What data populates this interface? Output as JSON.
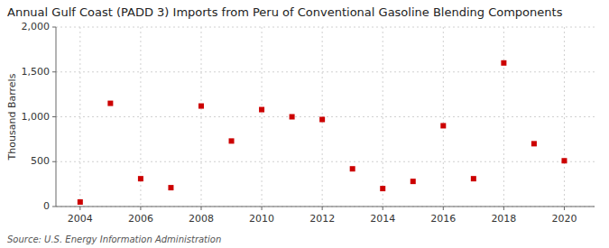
{
  "chart_data": {
    "type": "scatter",
    "title": "Annual Gulf Coast (PADD 3) Imports from Peru of Conventional Gasoline Blending Components",
    "y_label": "Thousand Barrels",
    "source": "Source: U.S. Energy Information Administration",
    "x": [
      2004,
      2005,
      2006,
      2007,
      2008,
      2009,
      2010,
      2011,
      2012,
      2013,
      2014,
      2015,
      2016,
      2017,
      2018,
      2019,
      2020
    ],
    "values": [
      50,
      1150,
      310,
      210,
      1120,
      730,
      1080,
      1000,
      970,
      420,
      200,
      280,
      900,
      310,
      1600,
      700,
      510
    ],
    "color": "#cc0000",
    "marker": "square",
    "xlim": [
      2003.2,
      2021.0
    ],
    "ylim": [
      0,
      2000
    ],
    "xticks": [
      2004,
      2006,
      2008,
      2010,
      2012,
      2014,
      2016,
      2018,
      2020
    ],
    "yticks": [
      0,
      500,
      {
        "value": 1000,
        "label": "1,000"
      },
      {
        "value": 1500,
        "label": "1,500"
      },
      {
        "value": 2000,
        "label": "2,000"
      }
    ],
    "grid": true
  }
}
